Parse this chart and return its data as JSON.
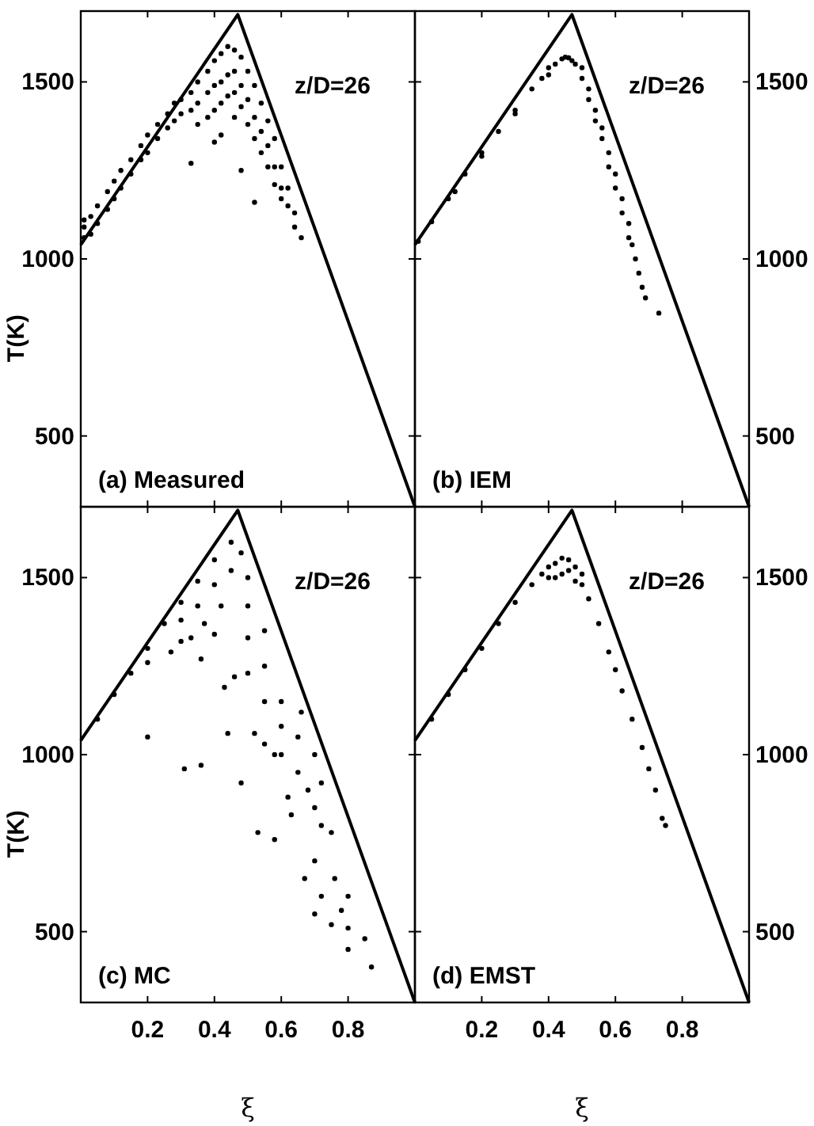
{
  "chart_data": [
    {
      "type": "scatter",
      "annotations": [
        "z/D=26",
        "(a) Measured"
      ],
      "ylabel": "T(K)",
      "xlim": [
        0,
        1
      ],
      "ylim": [
        300,
        1700
      ],
      "xticks": [
        0.2,
        0.4,
        0.6,
        0.8
      ],
      "yticks": [
        500,
        1000,
        1500
      ],
      "tick_labels": "y",
      "series": [
        {
          "type": "line",
          "color": "#000000",
          "x": [
            0,
            0.47,
            1
          ],
          "values": [
            1040,
            1690,
            300
          ]
        },
        {
          "type": "scatter",
          "color": "#000000",
          "marker": "circle",
          "x": [
            0.01,
            0.01,
            0.01,
            0.03,
            0.03,
            0.05,
            0.05,
            0.08,
            0.08,
            0.1,
            0.1,
            0.12,
            0.12,
            0.15,
            0.15,
            0.18,
            0.18,
            0.2,
            0.2,
            0.23,
            0.23,
            0.26,
            0.26,
            0.28,
            0.28,
            0.3,
            0.3,
            0.33,
            0.33,
            0.33,
            0.35,
            0.35,
            0.35,
            0.38,
            0.38,
            0.38,
            0.4,
            0.4,
            0.4,
            0.4,
            0.42,
            0.42,
            0.42,
            0.42,
            0.44,
            0.44,
            0.44,
            0.46,
            0.46,
            0.46,
            0.46,
            0.48,
            0.48,
            0.48,
            0.48,
            0.5,
            0.5,
            0.5,
            0.52,
            0.52,
            0.52,
            0.52,
            0.54,
            0.54,
            0.54,
            0.56,
            0.56,
            0.56,
            0.58,
            0.58,
            0.58,
            0.6,
            0.6,
            0.6,
            0.62,
            0.62,
            0.64,
            0.64,
            0.66
          ],
          "values": [
            1060,
            1090,
            1110,
            1070,
            1120,
            1100,
            1150,
            1140,
            1190,
            1170,
            1220,
            1200,
            1250,
            1240,
            1280,
            1280,
            1320,
            1300,
            1350,
            1340,
            1380,
            1370,
            1410,
            1390,
            1440,
            1410,
            1450,
            1420,
            1470,
            1270,
            1440,
            1500,
            1380,
            1470,
            1530,
            1400,
            1490,
            1560,
            1420,
            1330,
            1500,
            1580,
            1440,
            1350,
            1520,
            1600,
            1460,
            1530,
            1590,
            1470,
            1400,
            1490,
            1570,
            1430,
            1250,
            1450,
            1530,
            1380,
            1400,
            1490,
            1340,
            1160,
            1360,
            1440,
            1300,
            1320,
            1390,
            1260,
            1260,
            1340,
            1210,
            1200,
            1260,
            1170,
            1150,
            1200,
            1090,
            1130,
            1060
          ]
        }
      ]
    },
    {
      "type": "scatter",
      "annotations": [
        "z/D=26",
        "(b) IEM"
      ],
      "xlim": [
        0,
        1
      ],
      "ylim": [
        300,
        1700
      ],
      "xticks": [
        0.2,
        0.4,
        0.6,
        0.8
      ],
      "yticks": [
        500,
        1000,
        1500
      ],
      "tick_labels": "y",
      "series": [
        {
          "type": "line",
          "color": "#000000",
          "x": [
            0,
            0.47,
            1
          ],
          "values": [
            1040,
            1690,
            300
          ]
        },
        {
          "type": "scatter",
          "color": "#000000",
          "marker": "circle",
          "x": [
            0.01,
            0.05,
            0.1,
            0.12,
            0.15,
            0.2,
            0.2,
            0.25,
            0.3,
            0.3,
            0.35,
            0.38,
            0.4,
            0.4,
            0.42,
            0.44,
            0.45,
            0.46,
            0.47,
            0.48,
            0.5,
            0.5,
            0.52,
            0.52,
            0.54,
            0.54,
            0.56,
            0.56,
            0.58,
            0.58,
            0.6,
            0.6,
            0.62,
            0.62,
            0.64,
            0.64,
            0.65,
            0.66,
            0.67,
            0.68,
            0.69,
            0.73
          ],
          "values": [
            1050,
            1105,
            1170,
            1190,
            1240,
            1300,
            1290,
            1360,
            1420,
            1410,
            1480,
            1510,
            1520,
            1540,
            1550,
            1565,
            1570,
            1568,
            1560,
            1550,
            1540,
            1510,
            1480,
            1450,
            1420,
            1390,
            1370,
            1340,
            1300,
            1260,
            1240,
            1200,
            1170,
            1130,
            1100,
            1060,
            1040,
            1000,
            960,
            920,
            890,
            847
          ]
        }
      ]
    },
    {
      "type": "scatter",
      "annotations": [
        "z/D=26",
        "(c) MC"
      ],
      "xlabel": "ξ",
      "ylabel": "T(K)",
      "xlim": [
        0,
        1
      ],
      "ylim": [
        300,
        1700
      ],
      "xticks": [
        0.2,
        0.4,
        0.6,
        0.8
      ],
      "yticks": [
        500,
        1000,
        1500
      ],
      "series": [
        {
          "type": "line",
          "color": "#000000",
          "x": [
            0,
            0.47,
            1
          ],
          "values": [
            1040,
            1690,
            300
          ]
        },
        {
          "type": "scatter",
          "color": "#000000",
          "marker": "circle",
          "x": [
            0.05,
            0.1,
            0.15,
            0.2,
            0.25,
            0.3,
            0.35,
            0.4,
            0.45,
            0.2,
            0.3,
            0.35,
            0.4,
            0.45,
            0.48,
            0.5,
            0.5,
            0.55,
            0.55,
            0.6,
            0.6,
            0.65,
            0.65,
            0.68,
            0.7,
            0.72,
            0.75,
            0.7,
            0.67,
            0.72,
            0.7,
            0.75,
            0.8,
            0.8,
            0.8,
            0.85,
            0.87,
            0.2,
            0.31,
            0.36,
            0.44,
            0.48,
            0.53,
            0.58,
            0.63,
            0.62,
            0.52,
            0.55,
            0.58,
            0.43,
            0.36,
            0.27,
            0.46,
            0.33,
            0.4,
            0.3,
            0.5,
            0.6,
            0.66,
            0.7,
            0.72,
            0.76,
            0.78,
            0.55,
            0.5,
            0.42,
            0.37
          ],
          "values": [
            1100,
            1170,
            1230,
            1300,
            1370,
            1430,
            1490,
            1550,
            1600,
            1260,
            1380,
            1420,
            1480,
            1520,
            1570,
            1500,
            1420,
            1350,
            1250,
            1150,
            1080,
            1050,
            950,
            900,
            850,
            800,
            780,
            700,
            650,
            600,
            550,
            520,
            600,
            510,
            450,
            480,
            400,
            1050,
            960,
            970,
            1060,
            920,
            780,
            760,
            830,
            880,
            1060,
            1030,
            1000,
            1190,
            1270,
            1290,
            1220,
            1330,
            1340,
            1320,
            1230,
            1000,
            1120,
            1000,
            920,
            650,
            560,
            1150,
            1330,
            1420,
            1370
          ]
        }
      ]
    },
    {
      "type": "scatter",
      "annotations": [
        "z/D=26",
        "(d) EMST"
      ],
      "xlabel": "ξ",
      "xlim": [
        0,
        1
      ],
      "ylim": [
        300,
        1700
      ],
      "xticks": [
        0.2,
        0.4,
        0.6,
        0.8
      ],
      "yticks": [
        500,
        1000,
        1500
      ],
      "series": [
        {
          "type": "line",
          "color": "#000000",
          "x": [
            0,
            0.47,
            1
          ],
          "values": [
            1040,
            1690,
            300
          ]
        },
        {
          "type": "scatter",
          "color": "#000000",
          "marker": "circle",
          "x": [
            0.05,
            0.1,
            0.15,
            0.2,
            0.25,
            0.3,
            0.35,
            0.38,
            0.4,
            0.42,
            0.44,
            0.46,
            0.48,
            0.5,
            0.52,
            0.55,
            0.58,
            0.6,
            0.62,
            0.65,
            0.68,
            0.7,
            0.72,
            0.74,
            0.75,
            0.4,
            0.44,
            0.46,
            0.48,
            0.5,
            0.42
          ],
          "values": [
            1100,
            1170,
            1240,
            1300,
            1370,
            1430,
            1480,
            1510,
            1530,
            1540,
            1555,
            1550,
            1530,
            1480,
            1440,
            1370,
            1290,
            1240,
            1180,
            1100,
            1020,
            960,
            900,
            820,
            800,
            1500,
            1510,
            1520,
            1490,
            1510,
            1500
          ]
        }
      ]
    }
  ]
}
